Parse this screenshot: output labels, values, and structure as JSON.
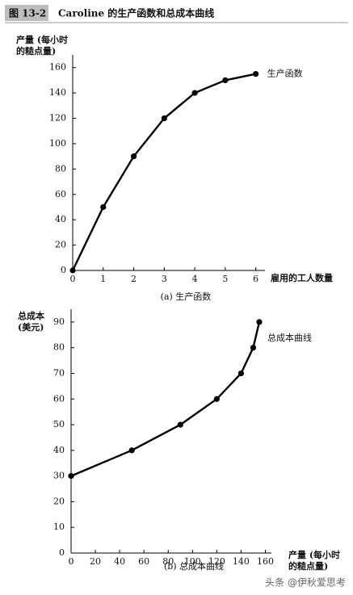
{
  "header": {
    "figure": "图 13-2",
    "title": "Caroline 的生产函数和总成本曲线"
  },
  "chart_data": [
    {
      "type": "line",
      "caption": "(a) 生产函数",
      "x_label": [
        "雇用的工人数量"
      ],
      "y_label": [
        "产量 (每小时",
        "的糙点量)"
      ],
      "x": [
        0,
        1,
        2,
        3,
        4,
        5,
        6
      ],
      "series": [
        {
          "name": "生产函数",
          "color": "#000000",
          "values": [
            0,
            50,
            90,
            120,
            140,
            150,
            155
          ]
        }
      ],
      "xlim": [
        0,
        6.3
      ],
      "xticks": [
        0,
        1,
        2,
        3,
        4,
        5,
        6
      ],
      "ylim": [
        0,
        170
      ],
      "yticks": [
        0,
        20,
        40,
        60,
        80,
        100,
        120,
        140,
        160
      ]
    },
    {
      "type": "line",
      "caption": "(b) 总成本曲线",
      "x_label": [
        "产量 (每小时",
        "的糙点量)"
      ],
      "y_label": [
        "总成本",
        "(美元)"
      ],
      "x": [
        0,
        50,
        90,
        120,
        140,
        150,
        155
      ],
      "series": [
        {
          "name": "总成本曲线",
          "color": "#000000",
          "values": [
            30,
            40,
            50,
            60,
            70,
            80,
            90
          ]
        }
      ],
      "xlim": [
        0,
        165
      ],
      "xticks": [
        0,
        20,
        40,
        60,
        80,
        100,
        120,
        140,
        160
      ],
      "ylim": [
        0,
        95
      ],
      "yticks": [
        0,
        10,
        20,
        30,
        40,
        50,
        60,
        70,
        80,
        90
      ]
    }
  ],
  "watermark": "头条 @伊秋爱思考"
}
